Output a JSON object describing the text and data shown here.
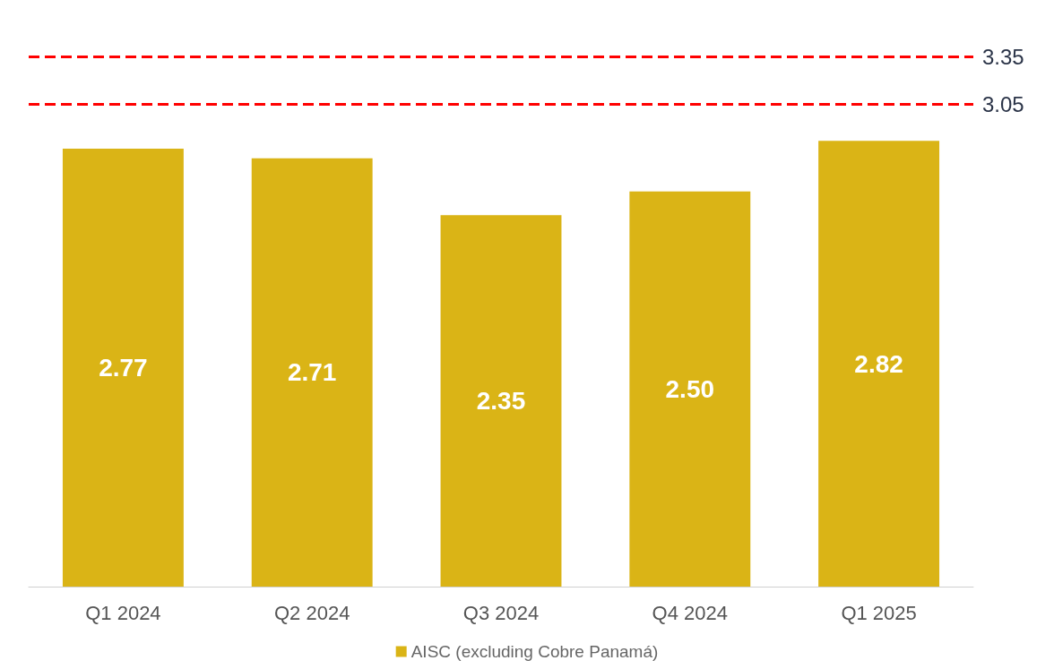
{
  "chart_data": {
    "type": "bar",
    "categories": [
      "Q1 2024",
      "Q2 2024",
      "Q3 2024",
      "Q4 2024",
      "Q1 2025"
    ],
    "series": [
      {
        "name": "AISC (excluding Cobre Panamá)",
        "color": "#dab416",
        "values": [
          2.77,
          2.71,
          2.35,
          2.5,
          2.82
        ],
        "value_labels": [
          "2.77",
          "2.71",
          "2.35",
          "2.50",
          "2.82"
        ]
      }
    ],
    "tick_labels": "x",
    "grid": false,
    "legend": "bottom",
    "ref_lines": [
      {
        "axis": "y",
        "value": 3.35,
        "label": "3.35",
        "color": "#ff0000",
        "line_style": "dashed"
      },
      {
        "axis": "y",
        "value": 3.05,
        "label": "3.05",
        "color": "#ff0000",
        "line_style": "dashed"
      }
    ]
  }
}
